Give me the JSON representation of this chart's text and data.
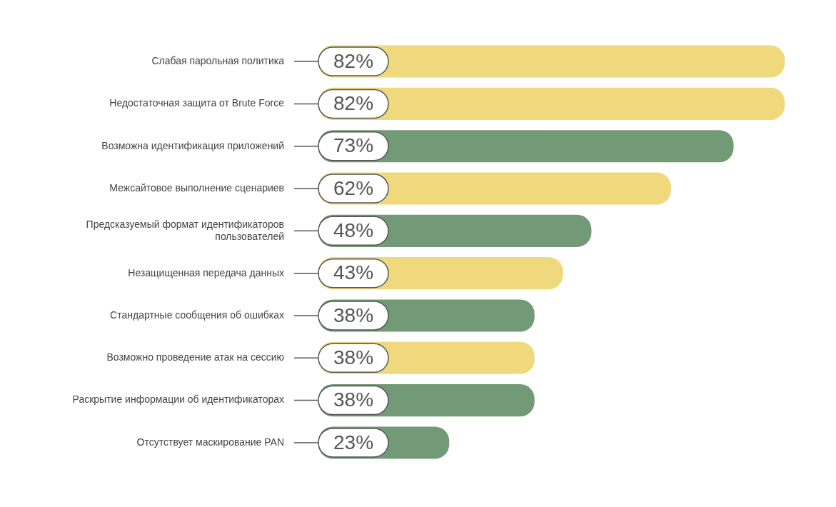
{
  "chart_data": {
    "type": "bar",
    "orientation": "horizontal",
    "categories": [
      "Слабая парольная политика",
      "Недостаточная защита от Brute Force",
      "Возможна идентификация приложений",
      "Межсайтовое выполнение сценариев",
      "Предсказуемый формат идентификаторов пользователей",
      "Незащищенная передача данных",
      "Стандартные сообщения об ошибках",
      "Возможно проведение атак на сессию",
      "Раскрытие информации об идентификаторах",
      "Отсутствует маскирование PAN"
    ],
    "values": [
      82,
      82,
      73,
      62,
      48,
      43,
      38,
      38,
      38,
      23
    ],
    "colors": [
      "#f0d87c",
      "#f0d87c",
      "#739a76",
      "#f0d87c",
      "#739a76",
      "#f0d87c",
      "#739a76",
      "#f0d87c",
      "#739a76",
      "#739a76"
    ],
    "value_labels": [
      "82%",
      "82%",
      "73%",
      "62%",
      "48%",
      "43%",
      "38%",
      "38%",
      "38%",
      "23%"
    ],
    "legend": false,
    "tick_labels": "y"
  }
}
